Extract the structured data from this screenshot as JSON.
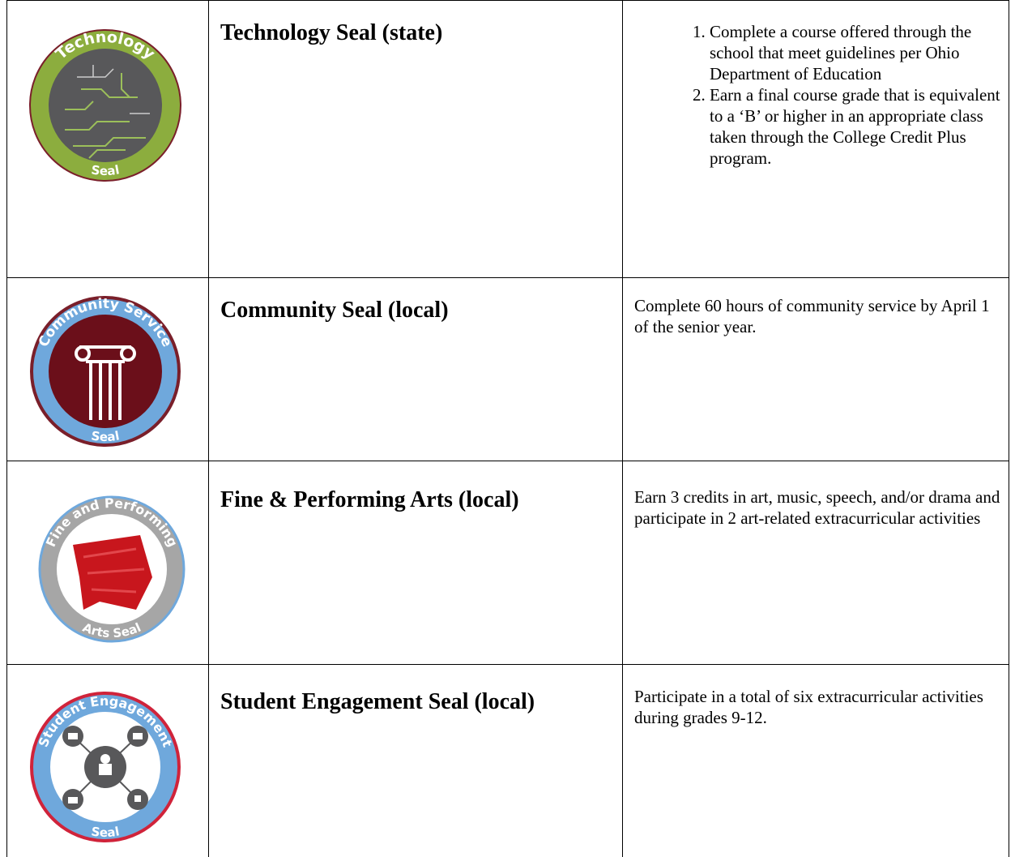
{
  "table": {
    "rows": [
      {
        "badge": {
          "top": "Technology",
          "bottom": "Seal"
        },
        "title": "Technology Seal (state)",
        "requirements": [
          "Complete a course offered through the school that meet guidelines per Ohio Department of Education",
          "Earn a final course grade that is equivalent to a ‘B’ or higher in an appropriate class taken through the College Credit Plus program."
        ]
      },
      {
        "badge": {
          "top": "Community Service",
          "bottom": "Seal"
        },
        "title": "Community Seal (local)",
        "requirement": "Complete 60 hours of community service by April 1 of the senior year."
      },
      {
        "badge": {
          "top": "Fine and Performing",
          "bottom": "Arts Seal"
        },
        "title": "Fine & Performing Arts (local)",
        "requirement": "Earn 3 credits in art, music, speech, and/or drama and participate in 2 art-related extracurricular activities"
      },
      {
        "badge": {
          "top": "Student Engagement",
          "bottom": "Seal"
        },
        "title": "Student Engagement Seal (local)",
        "requirement": "Participate in a total of six extracurricular activities during grades 9-12."
      }
    ]
  }
}
